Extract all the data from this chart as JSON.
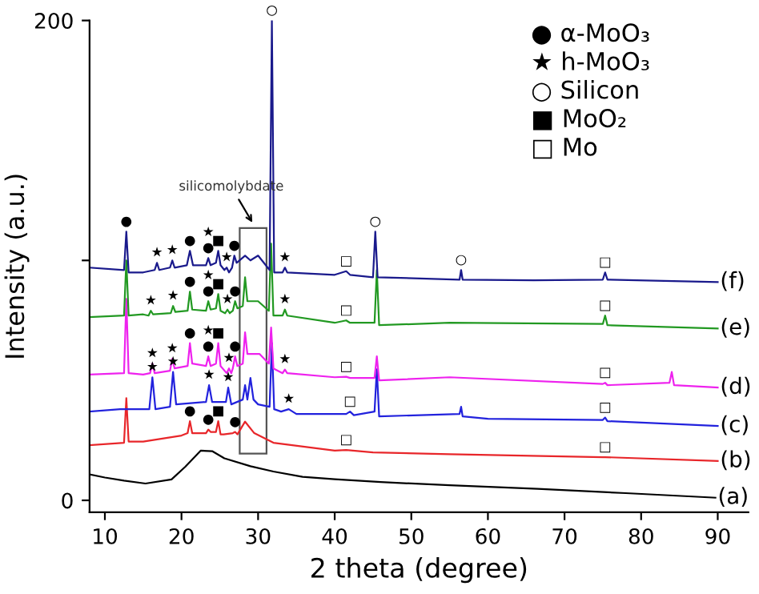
{
  "chart_data": {
    "type": "line",
    "xlabel": "2 theta (degree)",
    "ylabel": "Intensity (a.u.)",
    "xlim": [
      8,
      94
    ],
    "ylim": [
      -5,
      200
    ],
    "xticks": [
      10,
      20,
      30,
      40,
      50,
      60,
      70,
      80,
      90
    ],
    "yticks": [
      0,
      {
        "value": 100,
        "label": null
      },
      200
    ],
    "grid": false,
    "legend": false,
    "marker": "none",
    "line_style": "solid",
    "series": [
      {
        "name": "(a)",
        "color": "#000000",
        "x": [
          8,
          10,
          12.5,
          15.3,
          18.7,
          20.5,
          22.5,
          24,
          25.6,
          29,
          32,
          35.8,
          40,
          46,
          55,
          66.5,
          78,
          89.7
        ],
        "values": [
          10.8,
          9.5,
          8.2,
          7,
          8.7,
          14,
          20.7,
          20.5,
          17.5,
          14.2,
          12,
          9.8,
          8.8,
          7.6,
          6.3,
          4.8,
          3,
          1.1
        ]
      },
      {
        "name": "(b)",
        "color": "#e8262a",
        "x": [
          8,
          12.5,
          12.8,
          13.1,
          15,
          20,
          20.8,
          21.1,
          21.4,
          23.2,
          23.5,
          23.8,
          24.5,
          24.8,
          25.1,
          25.5,
          26.7,
          27.0,
          27.3,
          28.3,
          29.5,
          32,
          40,
          41.5,
          45,
          55,
          75,
          75.3,
          90
        ],
        "values": [
          23,
          24,
          42.6,
          24.5,
          24.5,
          27,
          28,
          33,
          28,
          28,
          29.5,
          28.5,
          28.5,
          33,
          27.5,
          27.5,
          28,
          28.5,
          27.5,
          32.8,
          28,
          24,
          20.7,
          21,
          20,
          19.2,
          18,
          18,
          16.4
        ]
      },
      {
        "name": "(c)",
        "color": "#2222dd",
        "x": [
          8,
          12,
          15.8,
          16.2,
          16.6,
          18.5,
          18.9,
          19.3,
          23.2,
          23.6,
          24,
          25.8,
          26.1,
          26.5,
          28,
          28.3,
          28.6,
          29,
          29.4,
          30,
          31.5,
          31.8,
          32.1,
          33,
          34.0,
          35,
          41.5,
          42.0,
          42.5,
          45.2,
          45.5,
          45.8,
          56.3,
          56.5,
          56.7,
          60,
          75,
          75.3,
          75.6,
          90
        ],
        "values": [
          37,
          38,
          38,
          51.3,
          38,
          39,
          53.5,
          40,
          41,
          48,
          41,
          41,
          47,
          40,
          42,
          48,
          42,
          51,
          42,
          40,
          39,
          65.5,
          38,
          37,
          38,
          36,
          36,
          37,
          35.5,
          37,
          54.6,
          35,
          36,
          39,
          35,
          34,
          33.5,
          34.5,
          33,
          31
        ]
      },
      {
        "name": "(d)",
        "color": "#ee22ee",
        "x": [
          8,
          12.5,
          12.8,
          13.1,
          15,
          15.9,
          16.2,
          16.5,
          18.5,
          18.8,
          19.1,
          20.8,
          21.1,
          21.4,
          23.2,
          23.5,
          23.8,
          24.5,
          24.8,
          25.1,
          25.9,
          26.2,
          26.5,
          26.7,
          27.0,
          27.3,
          28.0,
          28.3,
          28.6,
          29.2,
          30.2,
          31.4,
          31.7,
          32,
          33.2,
          33.5,
          33.8,
          40,
          41.5,
          42,
          45.2,
          45.5,
          45.8,
          55,
          75,
          75.3,
          75.6,
          83.7,
          84,
          84.3,
          90
        ],
        "values": [
          52.4,
          53,
          84,
          53,
          52.4,
          53,
          57,
          53,
          54,
          59,
          55,
          56,
          65.5,
          57,
          56,
          60,
          56,
          57,
          65.5,
          56,
          53,
          55,
          53,
          55,
          60,
          56,
          57,
          70,
          61,
          61,
          61,
          57,
          72,
          55,
          53,
          54.5,
          53,
          51.3,
          51.5,
          51,
          51,
          60,
          50,
          51.3,
          48.5,
          49,
          48,
          49,
          53.5,
          48,
          47
        ]
      },
      {
        "name": "(e)",
        "color": "#229922",
        "x": [
          8,
          12.5,
          12.8,
          13.1,
          15,
          15.7,
          16.0,
          16.3,
          18.6,
          18.9,
          19.2,
          20.8,
          21.1,
          21.4,
          23.2,
          23.5,
          23.8,
          24.5,
          24.8,
          25.1,
          25.7,
          26.0,
          26.3,
          26.7,
          27.0,
          27.3,
          28.0,
          28.3,
          28.6,
          29,
          30,
          31.4,
          31.7,
          32,
          33.2,
          33.5,
          33.8,
          40,
          41.5,
          42,
          45.2,
          45.5,
          45.8,
          55,
          75,
          75.3,
          75.6,
          90
        ],
        "values": [
          76.4,
          77,
          100,
          77,
          77.5,
          77,
          79,
          77.5,
          78,
          81,
          78.5,
          79,
          87,
          79.5,
          79,
          83,
          79.5,
          80,
          86,
          79,
          78,
          79.5,
          78,
          79,
          83,
          80,
          81,
          93,
          83,
          83,
          83,
          79,
          107,
          77,
          77,
          79.5,
          77,
          74,
          75,
          74,
          74,
          96,
          73,
          74,
          73.5,
          77,
          73,
          71.6
        ]
      },
      {
        "name": "(f)",
        "color": "#1a1a8c",
        "x": [
          8,
          12.5,
          12.8,
          13.1,
          15,
          16.5,
          16.8,
          17.1,
          18.5,
          18.8,
          19.1,
          20.7,
          21.1,
          21.5,
          23.2,
          23.5,
          23.8,
          24.5,
          24.8,
          25.1,
          25.6,
          25.9,
          26.2,
          26.6,
          26.9,
          27.2,
          28.3,
          29,
          30,
          31.5,
          31.8,
          32.1,
          33.2,
          33.5,
          33.8,
          40,
          41.5,
          42,
          45,
          45.3,
          45.6,
          56.3,
          56.5,
          56.7,
          66,
          75,
          75.3,
          75.6,
          90
        ],
        "values": [
          97,
          96,
          112,
          95,
          95,
          96,
          99,
          96,
          97,
          100,
          97,
          98,
          104,
          98,
          98,
          101,
          98,
          99,
          104,
          98,
          96,
          97,
          95,
          97,
          102,
          99,
          102,
          100,
          102,
          96,
          200,
          95,
          95,
          97,
          95,
          94,
          95.5,
          94,
          93,
          112,
          93,
          92,
          96,
          92,
          91.7,
          92,
          95,
          92,
          91
        ]
      }
    ],
    "annotations": [
      {
        "text": "●",
        "x": 12.8,
        "y": 112
      },
      {
        "text": "★",
        "x": 16.8,
        "y": 99
      },
      {
        "text": "★",
        "x": 18.8,
        "y": 100
      },
      {
        "text": "●",
        "x": 21.1,
        "y": 104
      },
      {
        "text": "●",
        "x": 23.5,
        "y": 101
      },
      {
        "text": "★",
        "x": 23.5,
        "y": 101
      },
      {
        "text": "■",
        "x": 24.8,
        "y": 104
      },
      {
        "text": "★",
        "x": 25.9,
        "y": 97
      },
      {
        "text": "●",
        "x": 26.9,
        "y": 102
      },
      {
        "text": "○",
        "x": 31.8,
        "y": 200
      },
      {
        "text": "★",
        "x": 33.5,
        "y": 97
      },
      {
        "text": "□",
        "x": 41.5,
        "y": 95.5
      },
      {
        "text": "○",
        "x": 45.3,
        "y": 112
      },
      {
        "text": "○",
        "x": 56.5,
        "y": 96
      },
      {
        "text": "□",
        "x": 75.3,
        "y": 95
      },
      {
        "text": "★",
        "x": 16.0,
        "y": 79
      },
      {
        "text": "★",
        "x": 18.9,
        "y": 81
      },
      {
        "text": "●",
        "x": 21.1,
        "y": 87
      },
      {
        "text": "●",
        "x": 23.5,
        "y": 83
      },
      {
        "text": "★",
        "x": 23.5,
        "y": 83
      },
      {
        "text": "■",
        "x": 24.8,
        "y": 86
      },
      {
        "text": "★",
        "x": 26.0,
        "y": 79.5
      },
      {
        "text": "●",
        "x": 27.0,
        "y": 83
      },
      {
        "text": "★",
        "x": 33.5,
        "y": 79.5
      },
      {
        "text": "□",
        "x": 41.5,
        "y": 75
      },
      {
        "text": "□",
        "x": 75.3,
        "y": 77
      },
      {
        "text": "★",
        "x": 16.2,
        "y": 57
      },
      {
        "text": "★",
        "x": 18.8,
        "y": 59
      },
      {
        "text": "●",
        "x": 21.1,
        "y": 65.5
      },
      {
        "text": "●",
        "x": 23.5,
        "y": 60
      },
      {
        "text": "★",
        "x": 23.5,
        "y": 60
      },
      {
        "text": "■",
        "x": 24.8,
        "y": 65.5
      },
      {
        "text": "★",
        "x": 26.2,
        "y": 55
      },
      {
        "text": "●",
        "x": 27.0,
        "y": 60
      },
      {
        "text": "★",
        "x": 33.5,
        "y": 54.5
      },
      {
        "text": "□",
        "x": 41.5,
        "y": 51.5
      },
      {
        "text": "□",
        "x": 75.3,
        "y": 49
      },
      {
        "text": "★",
        "x": 16.2,
        "y": 51.3
      },
      {
        "text": "★",
        "x": 18.9,
        "y": 53.5
      },
      {
        "text": "★",
        "x": 23.6,
        "y": 48
      },
      {
        "text": "★",
        "x": 26.1,
        "y": 47
      },
      {
        "text": "★",
        "x": 34.0,
        "y": 38
      },
      {
        "text": "□",
        "x": 42.0,
        "y": 37
      },
      {
        "text": "□",
        "x": 75.3,
        "y": 34.5
      },
      {
        "text": "●",
        "x": 21.1,
        "y": 33
      },
      {
        "text": "●",
        "x": 23.5,
        "y": 29.5
      },
      {
        "text": "■",
        "x": 24.8,
        "y": 33
      },
      {
        "text": "●",
        "x": 27.0,
        "y": 28.5
      },
      {
        "text": "□",
        "x": 41.5,
        "y": 21
      },
      {
        "text": "□",
        "x": 75.3,
        "y": 18
      },
      "silicomolybdate",
      "● α-MoO₃",
      "★ h-MoO₃",
      "○ Silicon",
      "■ MoO₂",
      "□ Mo"
    ]
  }
}
